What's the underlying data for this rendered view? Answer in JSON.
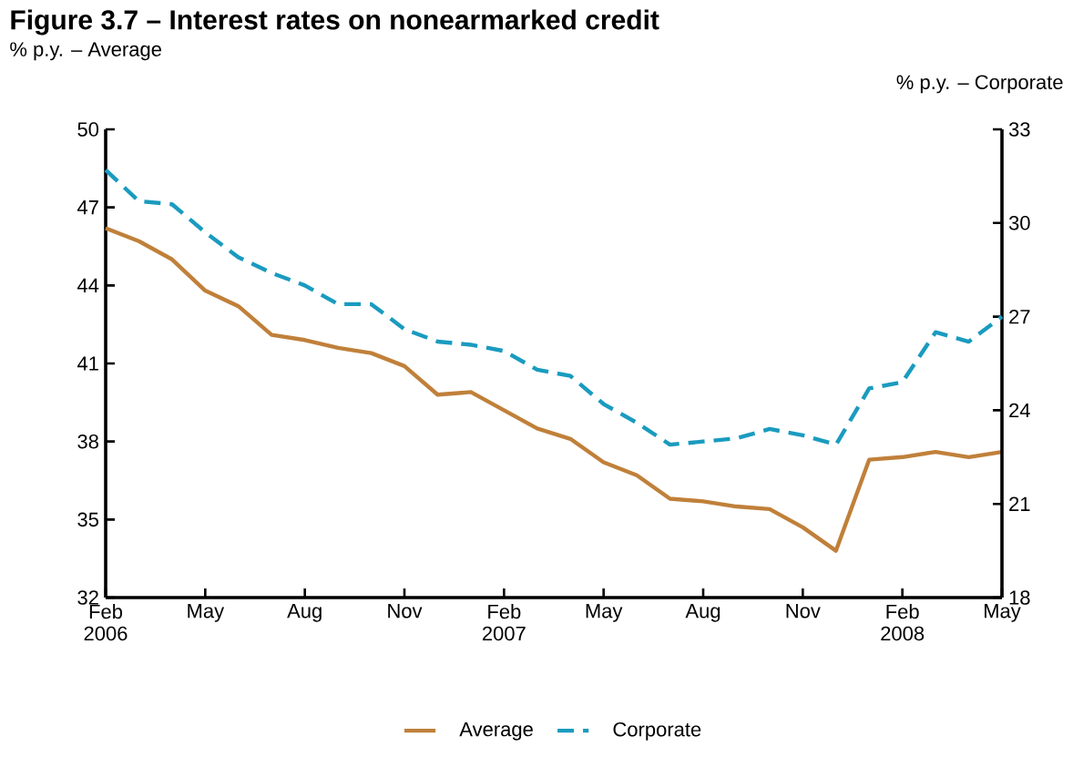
{
  "chart_data": {
    "type": "line",
    "title": "Figure 3.7 – Interest rates on nonearmarked credit",
    "ylabel": "% p.y. – Average",
    "y2label": "% p.y. – Corporate",
    "categories": [
      "Feb 2006",
      null,
      null,
      "May",
      null,
      null,
      "Aug",
      null,
      null,
      "Nov",
      null,
      null,
      "Feb 2007",
      null,
      null,
      "May",
      null,
      null,
      "Aug",
      null,
      null,
      "Nov",
      null,
      null,
      "Feb 2008",
      null,
      null,
      "May"
    ],
    "series": [
      {
        "name": "Average",
        "color": "#c0803a",
        "line_style": "solid",
        "values": [
          46.2,
          45.7,
          45.0,
          43.8,
          43.2,
          42.1,
          41.9,
          41.6,
          41.4,
          40.9,
          39.8,
          39.9,
          39.2,
          38.5,
          38.1,
          37.2,
          36.7,
          35.8,
          35.7,
          35.5,
          35.4,
          34.7,
          33.8,
          37.3,
          37.4,
          37.6,
          37.4,
          37.6
        ]
      },
      {
        "name": "Corporate",
        "color": "#1a9bbf",
        "line_style": "dashed",
        "axis": "y2",
        "values": [
          31.7,
          30.7,
          30.6,
          29.7,
          28.9,
          28.4,
          28.0,
          27.4,
          27.4,
          26.6,
          26.2,
          26.1,
          25.9,
          25.3,
          25.1,
          24.2,
          23.6,
          22.9,
          23.0,
          23.1,
          23.4,
          23.2,
          22.9,
          24.7,
          24.9,
          26.5,
          26.2,
          27.0
        ]
      }
    ],
    "ylim": [
      32,
      50
    ],
    "yticks": [
      32,
      35,
      38,
      41,
      44,
      47,
      50
    ],
    "y2lim": [
      18,
      33
    ],
    "y2ticks": [
      18,
      21,
      24,
      27,
      30,
      33
    ],
    "legend": "bottom",
    "marker": "none"
  }
}
